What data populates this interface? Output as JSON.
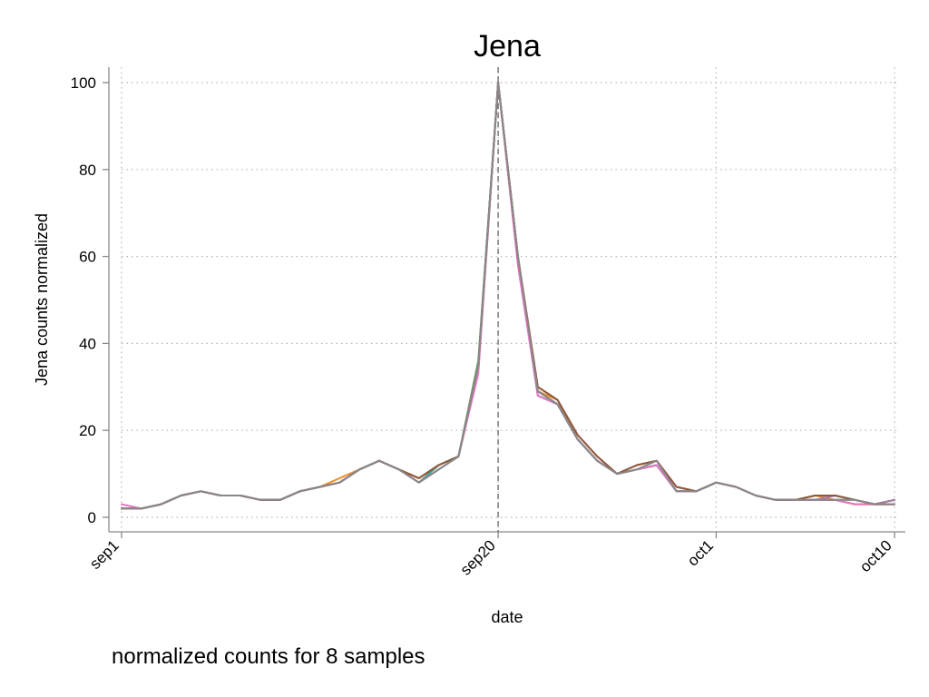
{
  "chart_data": {
    "type": "line",
    "title": "Jena",
    "xlabel": "date",
    "ylabel": "Jena counts normalized",
    "note": "normalized counts for 8 samples",
    "x_start": "2020-09-01",
    "x_end": "2020-10-10",
    "ylim": [
      -3,
      102
    ],
    "y_ticks": [
      0,
      20,
      40,
      60,
      80,
      100
    ],
    "x_ticks": [
      {
        "date": "2020-09-01",
        "label": "sep1"
      },
      {
        "date": "2020-09-20",
        "label": "sep20"
      },
      {
        "date": "2020-10-01",
        "label": "oct1"
      },
      {
        "date": "2020-10-10",
        "label": "oct10"
      }
    ],
    "reference_line_date": "2020-09-20",
    "grid": true,
    "x_dates": [
      "2020-09-01",
      "2020-09-02",
      "2020-09-03",
      "2020-09-04",
      "2020-09-05",
      "2020-09-06",
      "2020-09-07",
      "2020-09-08",
      "2020-09-09",
      "2020-09-10",
      "2020-09-11",
      "2020-09-12",
      "2020-09-13",
      "2020-09-14",
      "2020-09-15",
      "2020-09-16",
      "2020-09-17",
      "2020-09-18",
      "2020-09-19",
      "2020-09-20",
      "2020-09-21",
      "2020-09-22",
      "2020-09-23",
      "2020-09-24",
      "2020-09-25",
      "2020-09-26",
      "2020-09-27",
      "2020-09-28",
      "2020-09-29",
      "2020-09-30",
      "2020-10-01",
      "2020-10-02",
      "2020-10-03",
      "2020-10-04",
      "2020-10-05",
      "2020-10-06",
      "2020-10-07",
      "2020-10-08",
      "2020-10-09",
      "2020-10-10"
    ],
    "series": [
      {
        "color": "#e8344a",
        "values": [
          2,
          2,
          3,
          5,
          6,
          5,
          5,
          4,
          4,
          6,
          7,
          8,
          11,
          13,
          11,
          9,
          12,
          14,
          35,
          100,
          60,
          30,
          27,
          19,
          14,
          10,
          12,
          13,
          7,
          6,
          8,
          7,
          5,
          4,
          4,
          4,
          4,
          3,
          3,
          3
        ]
      },
      {
        "color": "#f28e2b",
        "values": [
          2,
          2,
          3,
          5,
          6,
          5,
          5,
          4,
          4,
          6,
          7,
          9,
          11,
          13,
          11,
          9,
          12,
          14,
          35,
          100,
          60,
          29,
          27,
          18,
          13,
          10,
          11,
          12,
          6,
          6,
          8,
          7,
          5,
          4,
          4,
          5,
          4,
          3,
          3,
          3
        ]
      },
      {
        "color": "#59a14f",
        "values": [
          2,
          2,
          3,
          5,
          6,
          5,
          5,
          4,
          4,
          6,
          7,
          8,
          11,
          13,
          11,
          8,
          12,
          14,
          36,
          100,
          60,
          29,
          26,
          18,
          13,
          10,
          11,
          12,
          6,
          6,
          8,
          7,
          5,
          4,
          4,
          5,
          5,
          4,
          3,
          4
        ]
      },
      {
        "color": "#3aa6a6",
        "values": [
          2,
          2,
          3,
          5,
          6,
          5,
          5,
          4,
          4,
          6,
          7,
          8,
          11,
          13,
          11,
          8,
          12,
          14,
          35,
          100,
          59,
          29,
          26,
          18,
          13,
          10,
          11,
          12,
          6,
          6,
          8,
          7,
          5,
          4,
          4,
          4,
          4,
          4,
          3,
          4
        ]
      },
      {
        "color": "#4e79a7",
        "values": [
          2,
          2,
          3,
          5,
          6,
          5,
          5,
          4,
          4,
          6,
          7,
          8,
          11,
          13,
          11,
          8,
          11,
          14,
          34,
          100,
          59,
          28,
          26,
          18,
          13,
          10,
          11,
          12,
          6,
          6,
          8,
          7,
          5,
          4,
          4,
          4,
          5,
          4,
          3,
          4
        ]
      },
      {
        "color": "#b07aa1",
        "values": [
          2,
          2,
          3,
          5,
          6,
          5,
          5,
          4,
          4,
          6,
          7,
          8,
          11,
          13,
          11,
          8,
          11,
          14,
          34,
          100,
          59,
          28,
          26,
          18,
          13,
          10,
          11,
          12,
          6,
          6,
          8,
          7,
          5,
          4,
          4,
          4,
          5,
          4,
          3,
          4
        ]
      },
      {
        "color": "#e377c2",
        "values": [
          3,
          2,
          3,
          5,
          6,
          5,
          5,
          4,
          4,
          6,
          7,
          8,
          11,
          13,
          11,
          8,
          11,
          14,
          33,
          100,
          58,
          28,
          26,
          18,
          13,
          10,
          11,
          12,
          6,
          6,
          8,
          7,
          5,
          4,
          4,
          4,
          4,
          3,
          3,
          3
        ]
      },
      {
        "color": "#8c5a3c",
        "values": [
          2,
          2,
          3,
          5,
          6,
          5,
          5,
          4,
          4,
          6,
          7,
          8,
          11,
          13,
          11,
          9,
          12,
          14,
          35,
          100,
          60,
          30,
          27,
          19,
          14,
          10,
          12,
          13,
          7,
          6,
          8,
          7,
          5,
          4,
          4,
          5,
          5,
          4,
          3,
          3
        ]
      },
      {
        "color": "#888888",
        "values": [
          2,
          2,
          3,
          5,
          6,
          5,
          5,
          4,
          4,
          6,
          7,
          8,
          11,
          13,
          11,
          8,
          11,
          14,
          35,
          100,
          60,
          29,
          26,
          18,
          13,
          10,
          11,
          13,
          6,
          6,
          8,
          7,
          5,
          4,
          4,
          4,
          4,
          4,
          3,
          3
        ]
      }
    ]
  }
}
